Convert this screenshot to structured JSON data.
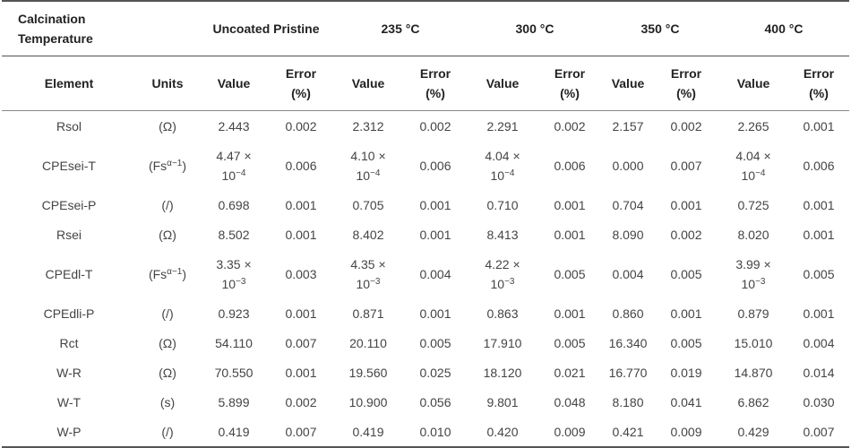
{
  "header": {
    "calcination": [
      "Calcination",
      "Temperature"
    ],
    "groups": [
      "Uncoated Pristine",
      "235 °C",
      "300 °C",
      "350 °C",
      "400 °C"
    ]
  },
  "subheader": {
    "element": "Element",
    "units": "Units",
    "value": "Value",
    "error": [
      "Error",
      "(%)"
    ]
  },
  "rows": [
    {
      "element": "Rsol",
      "unit": "(Ω)",
      "cells": [
        [
          "2.443"
        ],
        [
          "0.002"
        ],
        [
          "2.312"
        ],
        [
          "0.002"
        ],
        [
          "2.291"
        ],
        [
          "0.002"
        ],
        [
          "2.157"
        ],
        [
          "0.002"
        ],
        [
          "2.265"
        ],
        [
          "0.001"
        ]
      ]
    },
    {
      "element": "CPEsei-T",
      "unit_base": "(Fs",
      "unit_sup": "α−1",
      "unit_close": ")",
      "cells": [
        [
          "4.47 ×",
          "10",
          "−4"
        ],
        [
          "0.006"
        ],
        [
          "4.10 ×",
          "10",
          "−4"
        ],
        [
          "0.006"
        ],
        [
          "4.04 ×",
          "10",
          "−4"
        ],
        [
          "0.006"
        ],
        [
          "0.000"
        ],
        [
          "0.007"
        ],
        [
          "4.04 ×",
          "10",
          "−4"
        ],
        [
          "0.006"
        ]
      ]
    },
    {
      "element": "CPEsei-P",
      "unit": "(/)",
      "cells": [
        [
          "0.698"
        ],
        [
          "0.001"
        ],
        [
          "0.705"
        ],
        [
          "0.001"
        ],
        [
          "0.710"
        ],
        [
          "0.001"
        ],
        [
          "0.704"
        ],
        [
          "0.001"
        ],
        [
          "0.725"
        ],
        [
          "0.001"
        ]
      ]
    },
    {
      "element": "Rsei",
      "unit": "(Ω)",
      "cells": [
        [
          "8.502"
        ],
        [
          "0.001"
        ],
        [
          "8.402"
        ],
        [
          "0.001"
        ],
        [
          "8.413"
        ],
        [
          "0.001"
        ],
        [
          "8.090"
        ],
        [
          "0.002"
        ],
        [
          "8.020"
        ],
        [
          "0.001"
        ]
      ]
    },
    {
      "element": "CPEdl-T",
      "unit_base": "(Fs",
      "unit_sup": "α−1",
      "unit_close": ")",
      "cells": [
        [
          "3.35 ×",
          "10",
          "−3"
        ],
        [
          "0.003"
        ],
        [
          "4.35 ×",
          "10",
          "−3"
        ],
        [
          "0.004"
        ],
        [
          "4.22 ×",
          "10",
          "−3"
        ],
        [
          "0.005"
        ],
        [
          "0.004"
        ],
        [
          "0.005"
        ],
        [
          "3.99 ×",
          "10",
          "−3"
        ],
        [
          "0.005"
        ]
      ]
    },
    {
      "element": "CPEdli-P",
      "unit": "(/)",
      "cells": [
        [
          "0.923"
        ],
        [
          "0.001"
        ],
        [
          "0.871"
        ],
        [
          "0.001"
        ],
        [
          "0.863"
        ],
        [
          "0.001"
        ],
        [
          "0.860"
        ],
        [
          "0.001"
        ],
        [
          "0.879"
        ],
        [
          "0.001"
        ]
      ]
    },
    {
      "element": "Rct",
      "unit": "(Ω)",
      "cells": [
        [
          "54.110"
        ],
        [
          "0.007"
        ],
        [
          "20.110"
        ],
        [
          "0.005"
        ],
        [
          "17.910"
        ],
        [
          "0.005"
        ],
        [
          "16.340"
        ],
        [
          "0.005"
        ],
        [
          "15.010"
        ],
        [
          "0.004"
        ]
      ]
    },
    {
      "element": "W-R",
      "unit": "(Ω)",
      "cells": [
        [
          "70.550"
        ],
        [
          "0.001"
        ],
        [
          "19.560"
        ],
        [
          "0.025"
        ],
        [
          "18.120"
        ],
        [
          "0.021"
        ],
        [
          "16.770"
        ],
        [
          "0.019"
        ],
        [
          "14.870"
        ],
        [
          "0.014"
        ]
      ]
    },
    {
      "element": "W-T",
      "unit": "(s)",
      "cells": [
        [
          "5.899"
        ],
        [
          "0.002"
        ],
        [
          "10.900"
        ],
        [
          "0.056"
        ],
        [
          "9.801"
        ],
        [
          "0.048"
        ],
        [
          "8.180"
        ],
        [
          "0.041"
        ],
        [
          "6.862"
        ],
        [
          "0.030"
        ]
      ]
    },
    {
      "element": "W-P",
      "unit": "(/)",
      "cells": [
        [
          "0.419"
        ],
        [
          "0.007"
        ],
        [
          "0.419"
        ],
        [
          "0.010"
        ],
        [
          "0.420"
        ],
        [
          "0.009"
        ],
        [
          "0.421"
        ],
        [
          "0.009"
        ],
        [
          "0.429"
        ],
        [
          "0.007"
        ]
      ]
    }
  ]
}
